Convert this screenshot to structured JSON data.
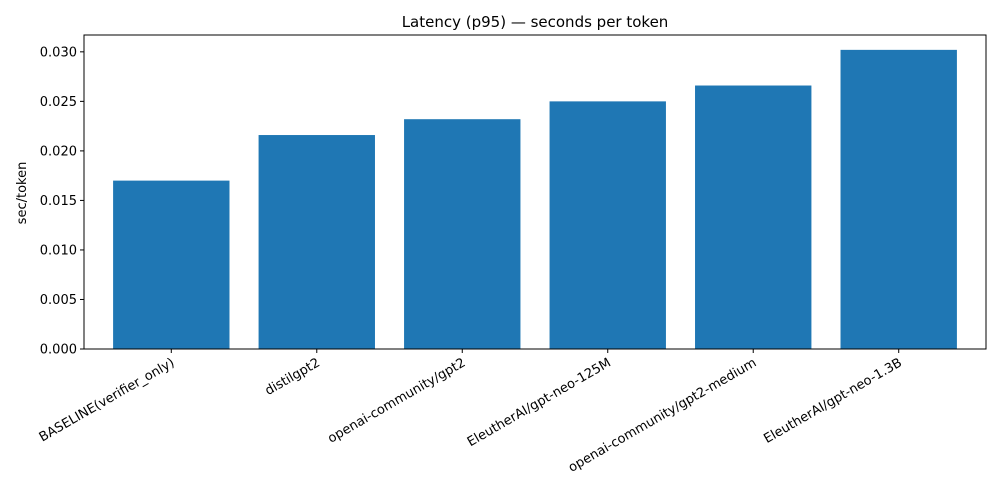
{
  "chart_data": {
    "type": "bar",
    "title": "Latency (p95) — seconds per token",
    "xlabel": "",
    "ylabel": "sec/token",
    "categories": [
      "BASELINE(verifier_only)",
      "distilgpt2",
      "openai-community/gpt2",
      "EleutherAI/gpt-neo-125M",
      "openai-community/gpt2-medium",
      "EleutherAI/gpt-neo-1.3B"
    ],
    "values": [
      0.017,
      0.0216,
      0.0232,
      0.025,
      0.0266,
      0.0302
    ],
    "ylim": [
      0,
      0.0317
    ],
    "yticks": [
      "0.000",
      "0.005",
      "0.010",
      "0.015",
      "0.020",
      "0.025",
      "0.030"
    ],
    "grid": false,
    "color": "#1f77b4"
  }
}
